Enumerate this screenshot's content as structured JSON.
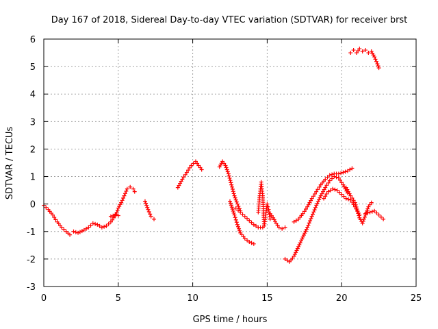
{
  "chart_data": {
    "type": "scatter",
    "title": "Day 167 of 2018, Sidereal Day-to-day VTEC variation (SDTVAR) for receiver brst",
    "xlabel": "GPS time / hours",
    "ylabel": "SDTVAR / TECUs",
    "xlim": [
      0,
      25
    ],
    "ylim": [
      -3,
      6
    ],
    "xticks": [
      0,
      5,
      10,
      15,
      20,
      25
    ],
    "yticks": [
      -3,
      -2,
      -1,
      0,
      1,
      2,
      3,
      4,
      5,
      6
    ],
    "xtick_labels": [
      "0",
      "5",
      "10",
      "15",
      "20",
      "25"
    ],
    "ytick_labels": [
      "-3",
      "-2",
      "-1",
      "0",
      "1",
      "2",
      "3",
      "4",
      "5",
      "6"
    ],
    "grid": true,
    "marker": "+",
    "series": [
      {
        "name": "brst",
        "color": "#ff0000",
        "segments": [
          {
            "x": [
              0.0,
              0.3,
              0.6,
              0.9,
              1.2,
              1.5,
              1.75
            ],
            "y": [
              -0.05,
              -0.2,
              -0.4,
              -0.65,
              -0.85,
              -1.0,
              -1.12
            ]
          },
          {
            "x": [
              2.0,
              2.3,
              2.7,
              3.0,
              3.3,
              3.6,
              3.9,
              4.2,
              4.5,
              4.7,
              4.9,
              5.0,
              5.2,
              5.4,
              5.6,
              5.8,
              6.0,
              6.1
            ],
            "y": [
              -1.0,
              -1.05,
              -0.95,
              -0.85,
              -0.7,
              -0.75,
              -0.85,
              -0.8,
              -0.65,
              -0.5,
              -0.3,
              -0.15,
              0.05,
              0.3,
              0.55,
              0.62,
              0.55,
              0.45
            ]
          },
          {
            "x": [
              4.5,
              4.8,
              5.0
            ],
            "y": [
              -0.45,
              -0.4,
              -0.42
            ]
          },
          {
            "x": [
              6.8,
              7.0,
              7.2,
              7.4
            ],
            "y": [
              0.1,
              -0.2,
              -0.45,
              -0.55
            ]
          },
          {
            "x": [
              9.0,
              9.3,
              9.6,
              9.9,
              10.2,
              10.4,
              10.6
            ],
            "y": [
              0.6,
              0.9,
              1.15,
              1.4,
              1.55,
              1.4,
              1.25
            ]
          },
          {
            "x": [
              11.8,
              12.0,
              12.2,
              12.4,
              12.6,
              12.8,
              13.0,
              13.2
            ],
            "y": [
              1.35,
              1.55,
              1.4,
              1.1,
              0.7,
              0.3,
              0.0,
              -0.25
            ]
          },
          {
            "x": [
              12.9,
              13.2,
              13.5,
              13.8,
              14.1,
              14.4,
              14.7
            ],
            "y": [
              -0.15,
              -0.3,
              -0.45,
              -0.6,
              -0.75,
              -0.85,
              -0.85
            ]
          },
          {
            "x": [
              12.5,
              12.8,
              13.0,
              13.2,
              13.5,
              13.8,
              14.1
            ],
            "y": [
              0.1,
              -0.4,
              -0.75,
              -1.05,
              -1.25,
              -1.38,
              -1.45
            ]
          },
          {
            "x": [
              14.4,
              14.5,
              14.6,
              14.7,
              14.8,
              14.9,
              15.0,
              15.1,
              15.2
            ],
            "y": [
              -0.3,
              0.3,
              0.8,
              0.3,
              -0.8,
              -0.4,
              0.0,
              -0.2,
              -0.55
            ]
          },
          {
            "x": [
              15.2,
              15.4,
              15.6,
              15.8,
              16.0,
              16.2
            ],
            "y": [
              -0.35,
              -0.5,
              -0.7,
              -0.85,
              -0.9,
              -0.85
            ]
          },
          {
            "x": [
              16.2,
              16.5,
              16.8,
              17.1,
              17.4,
              17.7,
              18.0,
              18.3,
              18.6,
              18.9,
              19.2,
              19.5,
              19.8,
              20.1,
              20.4
            ],
            "y": [
              -2.0,
              -2.1,
              -1.9,
              -1.55,
              -1.2,
              -0.85,
              -0.45,
              -0.05,
              0.3,
              0.6,
              0.85,
              1.0,
              0.95,
              0.7,
              0.4
            ]
          },
          {
            "x": [
              16.8,
              17.1,
              17.4,
              17.7,
              18.0,
              18.3,
              18.6,
              18.9,
              19.2,
              19.5,
              19.8,
              20.1,
              20.4,
              20.7
            ],
            "y": [
              -0.65,
              -0.55,
              -0.35,
              -0.1,
              0.2,
              0.45,
              0.7,
              0.9,
              1.05,
              1.1,
              1.1,
              1.15,
              1.2,
              1.3
            ]
          },
          {
            "x": [
              18.8,
              19.1,
              19.4,
              19.7,
              20.0,
              20.3,
              20.6,
              20.9,
              21.2
            ],
            "y": [
              0.2,
              0.45,
              0.55,
              0.5,
              0.35,
              0.2,
              0.15,
              -0.1,
              -0.4
            ]
          },
          {
            "x": [
              20.3,
              20.6,
              20.9,
              21.2,
              21.4,
              21.6,
              21.8,
              22.0
            ],
            "y": [
              0.6,
              0.3,
              0.05,
              -0.5,
              -0.7,
              -0.4,
              -0.1,
              0.05
            ]
          },
          {
            "x": [
              21.6,
              21.9,
              22.2,
              22.5,
              22.8
            ],
            "y": [
              -0.35,
              -0.3,
              -0.25,
              -0.4,
              -0.55
            ]
          },
          {
            "x": [
              20.6,
              20.8,
              21.0,
              21.2,
              21.4,
              21.6,
              21.8,
              22.0,
              22.2,
              22.4,
              22.5
            ],
            "y": [
              5.5,
              5.6,
              5.5,
              5.65,
              5.55,
              5.6,
              5.5,
              5.55,
              5.35,
              5.1,
              4.95
            ]
          }
        ]
      }
    ]
  }
}
